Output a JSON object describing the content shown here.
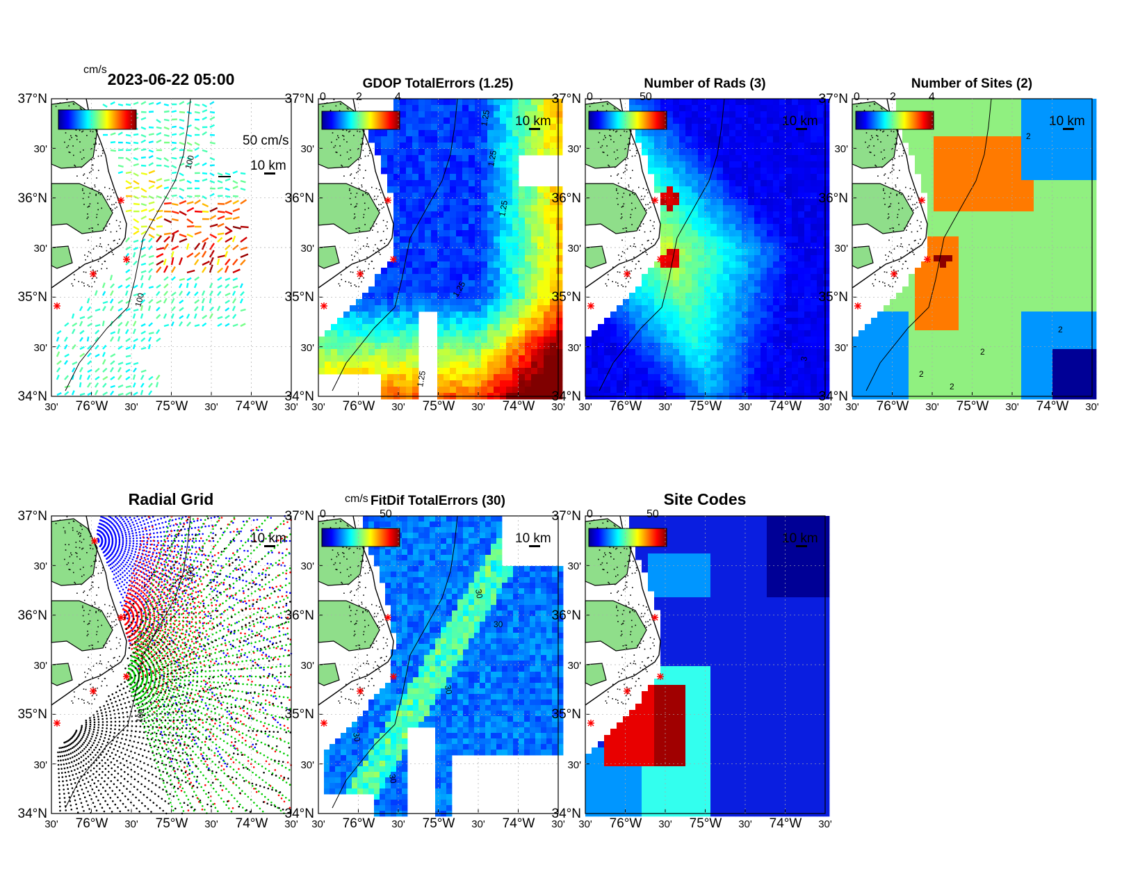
{
  "figure": {
    "timestamp": "2023-06-22 05:00",
    "cbar_unit": "cm/s",
    "vector_scale_label": "50 cm/s",
    "distance_scale_label": "10 km",
    "lat_ticks": [
      "37°N",
      "30'",
      "36°N",
      "30'",
      "35°N",
      "30'",
      "34°N"
    ],
    "lon_ticks": [
      "30'",
      "76°W",
      "30'",
      "75°W",
      "30'",
      "74°W",
      "30'"
    ]
  },
  "panels": [
    {
      "id": "total-vectors",
      "title": "2023-06-22 05:00",
      "cbar_unit": "cm/s",
      "cbar_ticks": [],
      "scale_label": "10 km",
      "vector_label": "50 cm/s",
      "contour_labels": [
        "100",
        "100"
      ]
    },
    {
      "id": "gdop",
      "title": "GDOP TotalErrors (1.25)",
      "cbar_ticks": [
        "0",
        "2",
        "4"
      ],
      "scale_label": "10 km",
      "contour_labels": [
        "1.25",
        "1.25",
        "1.25",
        "1.25",
        "1.25"
      ]
    },
    {
      "id": "num-rads",
      "title": "Number of Rads (3)",
      "cbar_ticks": [
        "0",
        "50"
      ],
      "scale_label": "10 km",
      "contour_labels": [
        "3"
      ]
    },
    {
      "id": "num-sites",
      "title": "Number of Sites (2)",
      "cbar_ticks": [
        "0",
        "2",
        "4"
      ],
      "scale_label": "10 km",
      "contour_labels": [
        "2",
        "2",
        "2",
        "2",
        "2"
      ]
    },
    {
      "id": "radial-grid",
      "title": "Radial Grid",
      "cbar_ticks": [],
      "scale_label": "10 km",
      "contour_labels": [
        "100",
        "100"
      ]
    },
    {
      "id": "fitdif",
      "title": "FitDif TotalErrors (30)",
      "cbar_unit": "cm/s",
      "cbar_ticks": [
        "0",
        "50"
      ],
      "scale_label": "10 km",
      "contour_labels": [
        "30",
        "30",
        "30",
        "30",
        "30"
      ]
    },
    {
      "id": "site-codes",
      "title": "Site Codes",
      "cbar_ticks": [
        "0",
        "50"
      ],
      "scale_label": "10 km",
      "contour_labels": []
    }
  ],
  "map_extent": {
    "lon": [
      -76.5,
      -73.5
    ],
    "lat": [
      34.0,
      37.0
    ]
  },
  "colors": {
    "land": "#8fde8a",
    "coast": "#000000",
    "site_marker": "#ff0000",
    "radial_site1": "#0000ff",
    "radial_site2": "#ff0000",
    "radial_site3": "#00cc00",
    "radial_site4": "#000000"
  }
}
